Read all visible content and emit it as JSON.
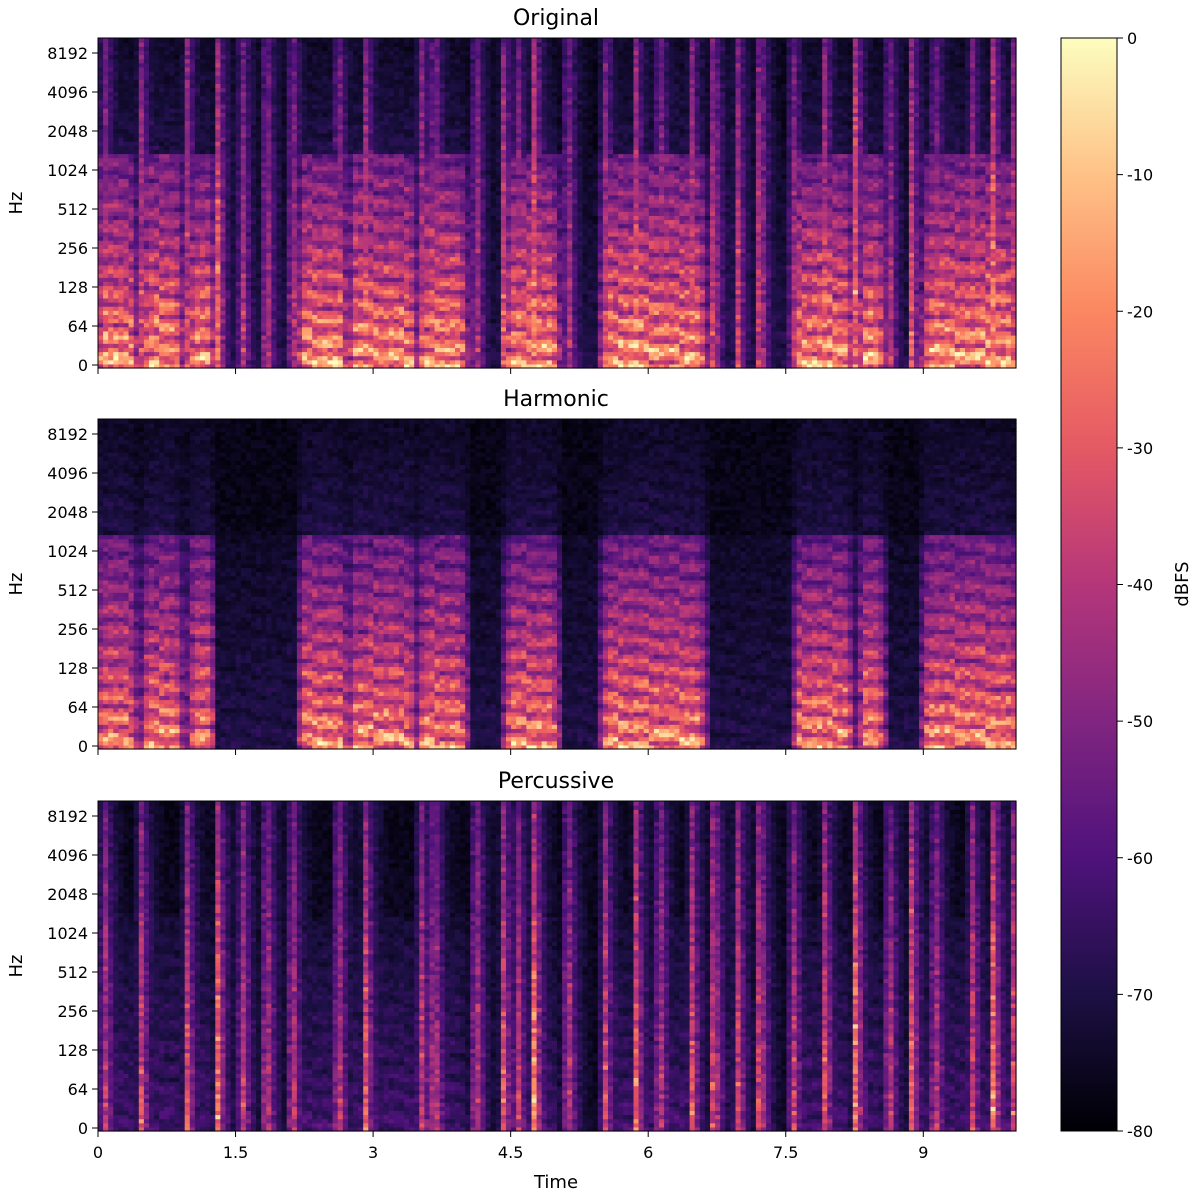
{
  "chart_data": {
    "type": "heatmap",
    "panels": [
      {
        "title": "Original",
        "ylabel": "Hz",
        "xlabel": "",
        "variant": "original"
      },
      {
        "title": "Harmonic",
        "ylabel": "Hz",
        "xlabel": "",
        "variant": "harmonic"
      },
      {
        "title": "Percussive",
        "ylabel": "Hz",
        "xlabel": "Time",
        "variant": "percussive"
      }
    ],
    "y_scale": "log",
    "y_ticks": [
      "0",
      "64",
      "128",
      "256",
      "512",
      "1024",
      "2048",
      "4096",
      "8192"
    ],
    "x_ticks": [
      "0",
      "1.5",
      "3",
      "4.5",
      "6",
      "7.5",
      "9"
    ],
    "xlim": [
      0,
      10
    ],
    "colorbar": {
      "label": "dBFS",
      "range": [
        -80,
        0
      ],
      "ticks": [
        "0",
        "-10",
        "-20",
        "-30",
        "-40",
        "-50",
        "-60",
        "-70",
        "-80"
      ],
      "colormap": "magma"
    },
    "onsets": [
      0.05,
      0.45,
      0.95,
      1.3,
      1.55,
      1.82,
      2.1,
      2.6,
      2.9,
      3.5,
      3.65,
      4.1,
      4.4,
      4.55,
      4.75,
      5.1,
      5.5,
      5.85,
      6.1,
      6.45,
      6.7,
      6.95,
      7.2,
      7.55,
      7.9,
      8.25,
      8.6,
      8.85,
      9.1,
      9.5,
      9.75,
      9.95
    ]
  }
}
